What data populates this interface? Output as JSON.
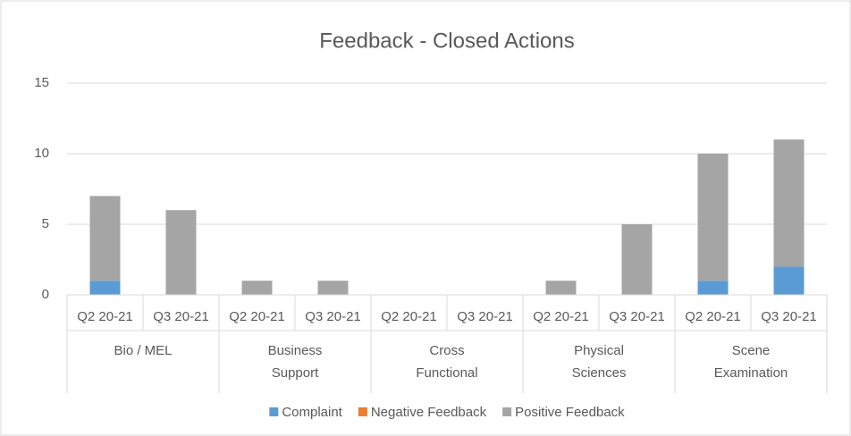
{
  "chart_data": {
    "type": "stacked_bar",
    "title": "Feedback - Closed Actions",
    "groups": [
      "Bio / MEL",
      "Business Support",
      "Cross Functional",
      "Physical Sciences",
      "Scene Examination"
    ],
    "categories": [
      "Q2 20-21",
      "Q3 20-21",
      "Q2 20-21",
      "Q3 20-21",
      "Q2 20-21",
      "Q3 20-21",
      "Q2 20-21",
      "Q3 20-21",
      "Q2 20-21",
      "Q3 20-21"
    ],
    "series": [
      {
        "name": "Complaint",
        "color": "#5b9bd5",
        "values": [
          1,
          0,
          0,
          0,
          0,
          0,
          0,
          0,
          1,
          2
        ]
      },
      {
        "name": "Negative Feedback",
        "color": "#ed7d31",
        "values": [
          0,
          0,
          0,
          0,
          0,
          0,
          0,
          0,
          0,
          0
        ]
      },
      {
        "name": "Positive Feedback",
        "color": "#a5a5a5",
        "values": [
          6,
          6,
          1,
          1,
          0,
          0,
          1,
          5,
          9,
          9
        ]
      }
    ],
    "ylim": [
      0,
      15
    ],
    "yticks": [
      0,
      5,
      10,
      15
    ],
    "grid": true,
    "legend": "bottom"
  }
}
